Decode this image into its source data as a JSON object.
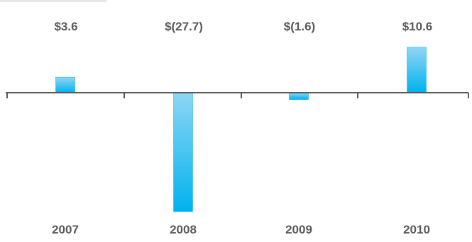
{
  "chart_data": {
    "type": "bar",
    "categories": [
      "2007",
      "2008",
      "2009",
      "2010"
    ],
    "values": [
      3.6,
      -27.7,
      -1.6,
      10.6
    ],
    "data_labels": [
      "$3.6",
      "$(27.7)",
      "$(1.6)",
      "$10.6"
    ],
    "title": "",
    "xlabel": "",
    "ylabel": "",
    "ylim": [
      -28,
      11
    ],
    "grid": false,
    "colors": {
      "bar_top": "#8fd6f4",
      "bar_bottom": "#00b2ee",
      "bar_edge": "#29b6e8",
      "axis": "#58595b",
      "text": "#58595b"
    }
  }
}
